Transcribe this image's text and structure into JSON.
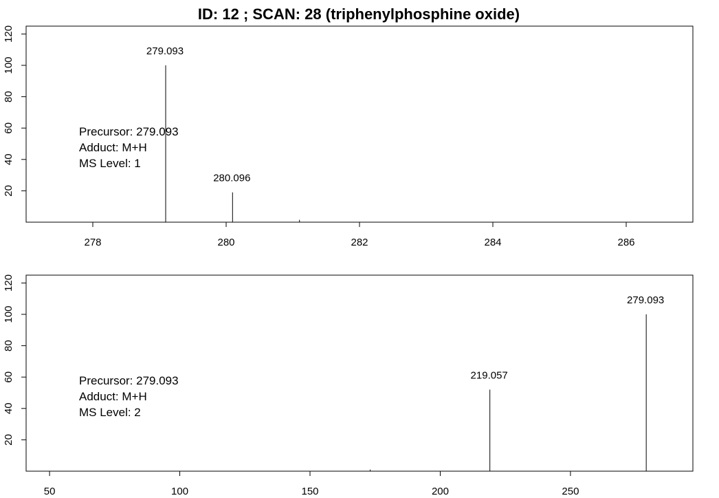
{
  "title": "ID: 12 ; SCAN: 28 (triphenylphosphine oxide)",
  "chart_data": [
    {
      "type": "bar",
      "subtype": "mass-spectrum-stick",
      "xlim": [
        277,
        287
      ],
      "ylim": [
        0,
        125
      ],
      "x_ticks": [
        278,
        280,
        282,
        284,
        286
      ],
      "y_ticks": [
        20,
        40,
        60,
        80,
        100,
        120
      ],
      "peaks": [
        {
          "mz": 279.093,
          "intensity": 100,
          "label": "279.093"
        },
        {
          "mz": 280.096,
          "intensity": 19,
          "label": "280.096"
        },
        {
          "mz": 281.1,
          "intensity": 1.5,
          "label": ""
        }
      ],
      "info": [
        "Precursor: 279.093",
        "Adduct: M+H",
        "MS Level: 1"
      ]
    },
    {
      "type": "bar",
      "subtype": "mass-spectrum-stick",
      "xlim": [
        41,
        297
      ],
      "ylim": [
        0,
        125
      ],
      "x_ticks": [
        50,
        100,
        150,
        200,
        250
      ],
      "y_ticks": [
        20,
        40,
        60,
        80,
        100,
        120
      ],
      "peaks": [
        {
          "mz": 173.1,
          "intensity": 1,
          "label": ""
        },
        {
          "mz": 219.057,
          "intensity": 52,
          "label": "219.057"
        },
        {
          "mz": 279.093,
          "intensity": 100,
          "label": "279.093"
        }
      ],
      "info": [
        "Precursor: 279.093",
        "Adduct: M+H",
        "MS Level: 2"
      ]
    }
  ]
}
